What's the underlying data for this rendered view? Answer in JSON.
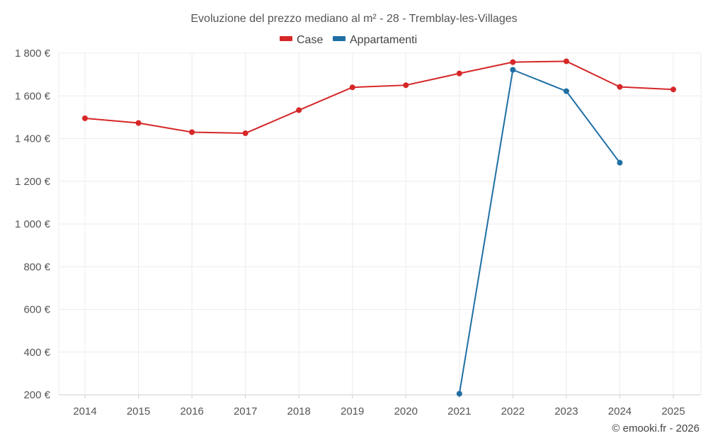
{
  "chart_data": {
    "type": "line",
    "title": "Evoluzione del prezzo mediano al m² - 28 - Tremblay-les-Villages",
    "categories": [
      "2014",
      "2015",
      "2016",
      "2017",
      "2018",
      "2019",
      "2020",
      "2021",
      "2022",
      "2023",
      "2024",
      "2025"
    ],
    "y_tick_values": [
      200,
      400,
      600,
      800,
      1000,
      1200,
      1400,
      1600,
      1800
    ],
    "y_tick_labels": [
      "200 €",
      "400 €",
      "600 €",
      "800 €",
      "1 000 €",
      "1 200 €",
      "1 400 €",
      "1 600 €",
      "1 800 €"
    ],
    "ylim": [
      200,
      1800
    ],
    "xlabel": "",
    "ylabel": "",
    "grid": true,
    "legend_position": "top-center",
    "series": [
      {
        "name": "Case",
        "color": "#d62728",
        "values": [
          1495,
          1473,
          1430,
          1425,
          1533,
          1640,
          1650,
          1705,
          1758,
          1762,
          1642,
          1630
        ]
      },
      {
        "name": "Appartamenti",
        "color": "#1f6fa4",
        "values": [
          null,
          null,
          null,
          null,
          null,
          null,
          null,
          205,
          1722,
          1622,
          1287,
          null
        ]
      }
    ]
  },
  "credit": "© emooki.fr - 2026"
}
